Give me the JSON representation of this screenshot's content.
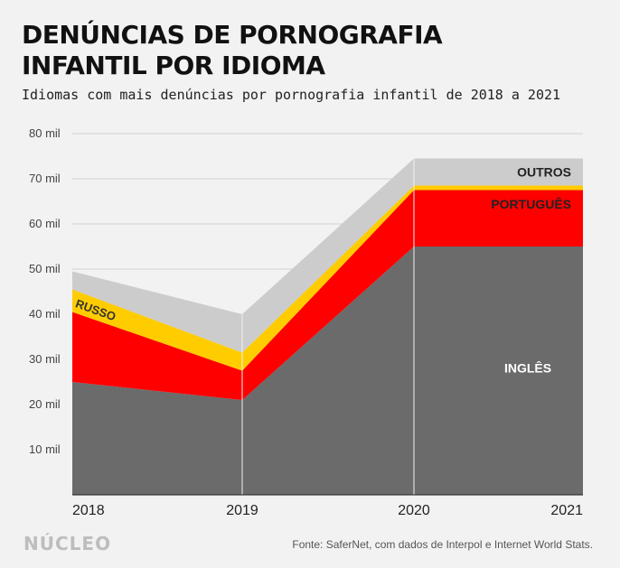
{
  "header": {
    "title_line1": "DENÚNCIAS DE PORNOGRAFIA",
    "title_line2": "INFANTIL POR IDIOMA",
    "subtitle": "Idiomas com mais denúncias por pornografia infantil de 2018 a 2021"
  },
  "footer": {
    "brand": "NÚCLEO",
    "source": "Fonte: SaferNet, com dados de Interpol e Internet World Stats."
  },
  "colors": {
    "ingles": "#6b6b6b",
    "portugues": "#ff0000",
    "russo": "#ffcc00",
    "outros": "#cccccc",
    "background": "#f2f2f2"
  },
  "chart_data": {
    "type": "area",
    "stacked": true,
    "x": [
      "2018",
      "2019",
      "2020",
      "2021"
    ],
    "ylim": [
      0,
      80000
    ],
    "yticks": [
      {
        "value": 10000,
        "label": "10 mil"
      },
      {
        "value": 20000,
        "label": "20 mil"
      },
      {
        "value": 30000,
        "label": "30 mil"
      },
      {
        "value": 40000,
        "label": "40 mil"
      },
      {
        "value": 50000,
        "label": "50 mil"
      },
      {
        "value": 60000,
        "label": "60 mil"
      },
      {
        "value": 70000,
        "label": "70 mil"
      },
      {
        "value": 80000,
        "label": "80 mil"
      }
    ],
    "grid": true,
    "series": [
      {
        "name": "INGLÊS",
        "values": [
          25000,
          21000,
          55000,
          55000
        ]
      },
      {
        "name": "PORTUGUÊS",
        "values": [
          15500,
          6500,
          12500,
          12500
        ]
      },
      {
        "name": "RUSSO",
        "values": [
          5000,
          4000,
          1000,
          1000
        ]
      },
      {
        "name": "OUTROS",
        "values": [
          4000,
          8500,
          6000,
          6000
        ]
      }
    ]
  }
}
